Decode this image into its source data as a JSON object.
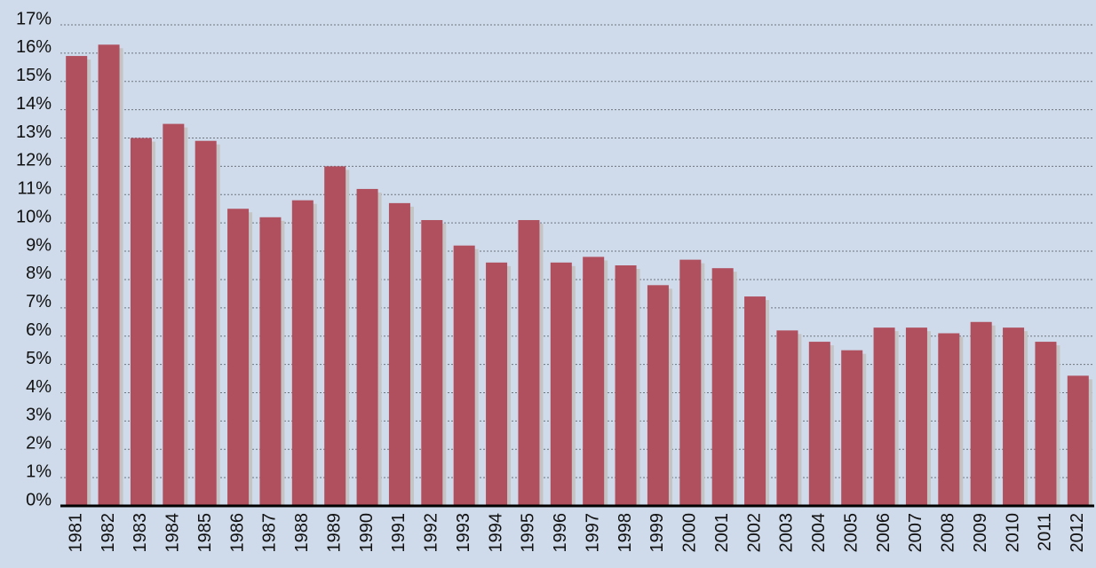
{
  "chart_data": {
    "type": "bar",
    "categories": [
      "1981",
      "1982",
      "1983",
      "1984",
      "1985",
      "1986",
      "1987",
      "1988",
      "1989",
      "1990",
      "1991",
      "1992",
      "1993",
      "1994",
      "1995",
      "1996",
      "1997",
      "1998",
      "1999",
      "2000",
      "2001",
      "2002",
      "2003",
      "2004",
      "2005",
      "2006",
      "2007",
      "2008",
      "2009",
      "2010",
      "2011",
      "2012"
    ],
    "values": [
      15.9,
      16.3,
      13.0,
      13.5,
      12.9,
      10.5,
      10.2,
      10.8,
      12.0,
      11.2,
      10.7,
      10.1,
      9.2,
      8.6,
      10.1,
      8.6,
      8.8,
      8.5,
      7.8,
      8.7,
      8.4,
      7.4,
      6.2,
      5.8,
      5.5,
      6.3,
      6.3,
      6.1,
      6.5,
      6.3,
      5.8,
      4.6
    ],
    "color": "#b04f5e",
    "ylim": [
      0,
      17
    ],
    "yticks": [
      {
        "value": 0,
        "label": "0%"
      },
      {
        "value": 1,
        "label": "1%"
      },
      {
        "value": 2,
        "label": "2%"
      },
      {
        "value": 3,
        "label": "3%"
      },
      {
        "value": 4,
        "label": "4%"
      },
      {
        "value": 5,
        "label": "5%"
      },
      {
        "value": 6,
        "label": "6%"
      },
      {
        "value": 7,
        "label": "7%"
      },
      {
        "value": 8,
        "label": "8%"
      },
      {
        "value": 9,
        "label": "9%"
      },
      {
        "value": 10,
        "label": "10%"
      },
      {
        "value": 11,
        "label": "11%"
      },
      {
        "value": 12,
        "label": "12%"
      },
      {
        "value": 13,
        "label": "13%"
      },
      {
        "value": 14,
        "label": "14%"
      },
      {
        "value": 15,
        "label": "15%"
      },
      {
        "value": 16,
        "label": "16%"
      },
      {
        "value": 17,
        "label": "17%"
      }
    ],
    "grid": true
  }
}
